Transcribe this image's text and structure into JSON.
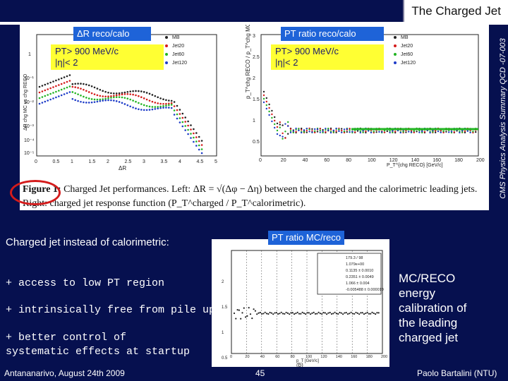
{
  "slide": {
    "title": "The Charged Jet",
    "side_note": "CMS Physics Analysis Summary QCD -07-003"
  },
  "paper": {
    "label_left": "ΔR  reco/calo",
    "label_right": "PT ratio  reco/calo",
    "cut_left_1": "PT> 900 MeV/c",
    "cut_left_2": "|η|< 2",
    "cut_right_1": "PT> 900 MeV/c",
    "cut_right_2": "|η|< 2",
    "legend": [
      "MB",
      "Jet20",
      "Jet60",
      "Jet120"
    ],
    "left_ylabel": "ΔR chg MC vs chg RECO",
    "left_xlabel": "ΔR",
    "left_xticks": [
      "0",
      "0.5",
      "1",
      "1.5",
      "2",
      "2.5",
      "3",
      "3.5",
      "4",
      "4.5",
      "5"
    ],
    "left_yticks": [
      "1",
      "10⁻¹",
      "10⁻²",
      "10⁻³",
      "10⁻⁴",
      "10⁻⁵"
    ],
    "right_xticks": [
      "0",
      "20",
      "40",
      "60",
      "80",
      "100",
      "120",
      "140",
      "160",
      "180",
      "200"
    ],
    "right_yticks": [
      "3",
      "2.5",
      "2",
      "1.5",
      "1",
      "0.5"
    ],
    "right_xlabel": "P_T^{chg RECO} [GeV/c]",
    "caption_figure": "Figure 1:",
    "caption_text": "Charged Jet performances. Left: ΔR = √(Δφ − Δη) between the charged and the calorimetric leading jets. Right: charged jet response function (P_T^charged / P_T^calorimetric)."
  },
  "left_text": {
    "intro": "Charged jet instead of calorimetric:",
    "bullet1": "+ access to low PT region",
    "bullet2": "+ intrinsically free from pile up",
    "bullet3": "+ better control of systematic effects at startup"
  },
  "mc_panel": {
    "label": "PT ratio  MC/reco",
    "fit_params": [
      "179.3 / 98",
      "1.079e+00",
      "0.1135 ± 0.0010",
      "0.2351 ± 0.0049",
      "1.066 ± 0.004",
      "-0.005488 ± 0.000019"
    ],
    "sub_label": "(b)",
    "xticks": [
      "0",
      "20",
      "40",
      "60",
      "80",
      "100",
      "120",
      "140",
      "160",
      "180",
      "200"
    ],
    "yticks": [
      "2",
      "1.5",
      "1",
      "0.5"
    ],
    "xlabel": "p_T [GeV/c]"
  },
  "right_text": {
    "line1": "MC/RECO",
    "line2": "energy",
    "line3": "calibration of",
    "line4": "the leading",
    "line5": "charged jet"
  },
  "footer": {
    "left": "Antananarivo, August 24th 2009",
    "page": "45",
    "right": "Paolo Bartalini (NTU)"
  },
  "colors": {
    "background": "#06104f",
    "highlight": "#ffff33",
    "blue_label": "#1e63d8",
    "fit_green": "#22b422",
    "circle_red": "#d41b1b"
  }
}
